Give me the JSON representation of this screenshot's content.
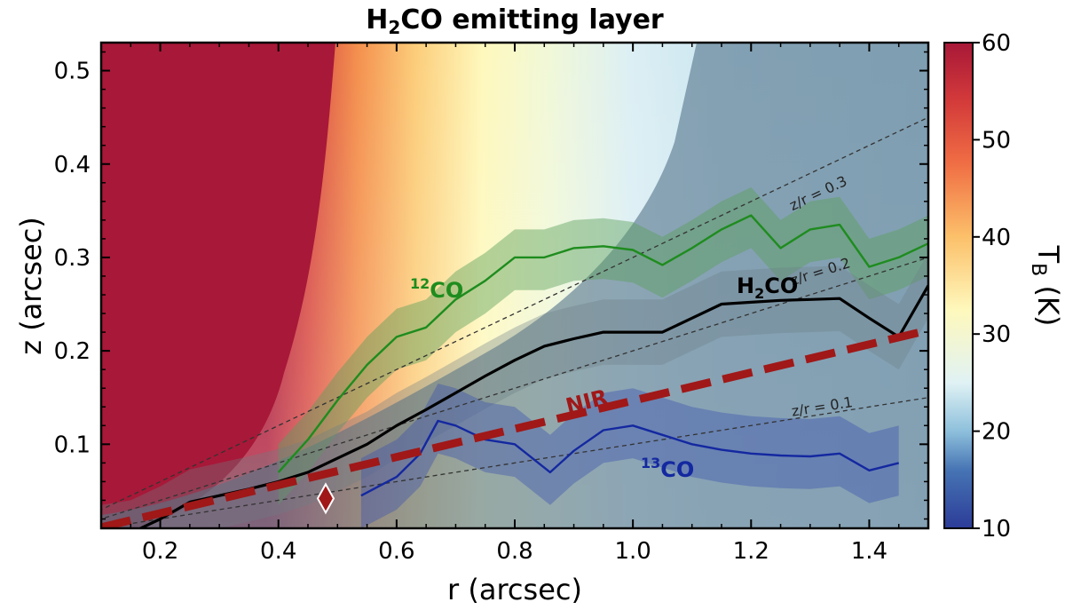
{
  "chart_data": {
    "type": "line",
    "title_main": "H",
    "title_sub": "2",
    "title_rest": "CO emitting layer",
    "xlabel": "r (arcsec)",
    "ylabel": "z (arcsec)",
    "xlim": [
      0.1,
      1.5
    ],
    "ylim": [
      0.01,
      0.53
    ],
    "xticks": [
      "0.2",
      "0.4",
      "0.6",
      "0.8",
      "1.0",
      "1.2",
      "1.4"
    ],
    "xtick_values": [
      0.2,
      0.4,
      0.6,
      0.8,
      1.0,
      1.2,
      1.4
    ],
    "yticks": [
      "0.1",
      "0.2",
      "0.3",
      "0.4",
      "0.5"
    ],
    "ytick_values": [
      0.1,
      0.2,
      0.3,
      0.4,
      0.5
    ],
    "colorbar": {
      "label_main": "T",
      "label_sub": "B",
      "label_rest": " (K)",
      "ticks": [
        "10",
        "20",
        "30",
        "40",
        "50",
        "60"
      ],
      "tick_values": [
        10,
        20,
        30,
        40,
        50,
        60
      ],
      "range": [
        10,
        60
      ]
    },
    "reference_lines": [
      {
        "slope": 0.3,
        "label": "z/r = 0.3"
      },
      {
        "slope": 0.2,
        "label": "z/r = 0.2"
      },
      {
        "slope": 0.1,
        "label": "z/r = 0.1"
      }
    ],
    "series": [
      {
        "name": "H2CO",
        "label_main": "H",
        "label_sub": "2",
        "label_rest": "CO",
        "color": "#000000",
        "x": [
          0.1,
          0.15,
          0.2,
          0.25,
          0.3,
          0.35,
          0.4,
          0.45,
          0.5,
          0.55,
          0.6,
          0.65,
          0.7,
          0.75,
          0.8,
          0.85,
          0.9,
          0.95,
          1.0,
          1.05,
          1.1,
          1.15,
          1.2,
          1.25,
          1.3,
          1.35,
          1.4,
          1.45,
          1.5
        ],
        "y": [
          0.0,
          0.005,
          0.02,
          0.038,
          0.045,
          0.052,
          0.06,
          0.07,
          0.085,
          0.1,
          0.12,
          0.137,
          0.155,
          0.173,
          0.19,
          0.205,
          0.213,
          0.22,
          0.22,
          0.22,
          0.235,
          0.25,
          0.252,
          0.254,
          0.255,
          0.256,
          0.235,
          0.215,
          0.27
        ]
      },
      {
        "name": "12CO",
        "label_sup": "12",
        "label_rest": "CO",
        "color": "#1e8c1e",
        "x": [
          0.4,
          0.45,
          0.5,
          0.55,
          0.6,
          0.65,
          0.7,
          0.75,
          0.8,
          0.85,
          0.9,
          0.95,
          1.0,
          1.05,
          1.1,
          1.15,
          1.2,
          1.25,
          1.3,
          1.35,
          1.4,
          1.45,
          1.5
        ],
        "y": [
          0.07,
          0.105,
          0.147,
          0.185,
          0.215,
          0.225,
          0.255,
          0.275,
          0.3,
          0.3,
          0.31,
          0.312,
          0.308,
          0.292,
          0.31,
          0.33,
          0.345,
          0.31,
          0.33,
          0.335,
          0.29,
          0.3,
          0.315
        ]
      },
      {
        "name": "13CO",
        "label_sup": "13",
        "label_rest": "CO",
        "color": "#1428a0",
        "x": [
          0.54,
          0.6,
          0.64,
          0.67,
          0.7,
          0.75,
          0.8,
          0.86,
          0.9,
          0.95,
          1.0,
          1.05,
          1.1,
          1.15,
          1.2,
          1.25,
          1.3,
          1.35,
          1.4,
          1.45
        ],
        "y": [
          0.045,
          0.065,
          0.09,
          0.125,
          0.12,
          0.105,
          0.1,
          0.07,
          0.093,
          0.115,
          0.12,
          0.11,
          0.1,
          0.094,
          0.09,
          0.088,
          0.087,
          0.09,
          0.072,
          0.08
        ]
      },
      {
        "name": "NIR",
        "label": "NIR",
        "color": "#a01818",
        "style": "dashed",
        "x": [
          0.1,
          1.5
        ],
        "y": [
          0.011,
          0.222
        ]
      }
    ],
    "marker": {
      "x": 0.48,
      "y": 0.042,
      "shape": "diamond",
      "color": "#a01818"
    }
  }
}
